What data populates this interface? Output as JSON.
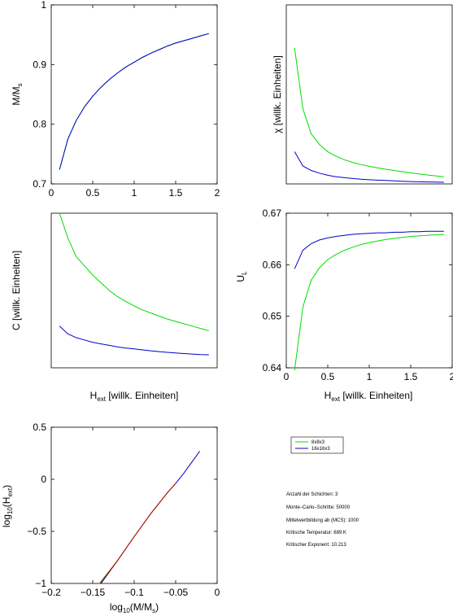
{
  "colors": {
    "green": "#00dd00",
    "blue": "#0000cc",
    "red": "#cc0000",
    "axis": "#000000"
  },
  "legend": {
    "entries": [
      {
        "label": "8x8x3",
        "color": "#00dd00"
      },
      {
        "label": "16x16x3",
        "color": "#0000cc"
      }
    ]
  },
  "info": {
    "lines": [
      "Anzahl der Schichten: 3",
      "Monte–Carlo–Schritte: 50000",
      "Mittelwertbildung ab (MCS): 1000",
      "Kritische Temperatur: 689 K",
      "Kritischer Exponent: 10.213"
    ]
  },
  "chart_data": [
    {
      "id": "magnetization",
      "type": "line",
      "ylabel": "M/M_s",
      "xlabel": "",
      "xlim": [
        0,
        2
      ],
      "ylim": [
        0.7,
        1
      ],
      "xticks": [
        "0",
        "0.5",
        "1",
        "1.5",
        "2"
      ],
      "yticks": [
        "0.7",
        "0.8",
        "0.9",
        "1"
      ],
      "series": [
        {
          "color": "#00dd00",
          "x": [
            0.1,
            0.2,
            0.3,
            0.4,
            0.5,
            0.6,
            0.7,
            0.8,
            0.9,
            1.0,
            1.1,
            1.2,
            1.3,
            1.4,
            1.5,
            1.6,
            1.7,
            1.8,
            1.9
          ],
          "y": [
            0.724,
            0.775,
            0.806,
            0.829,
            0.847,
            0.862,
            0.875,
            0.886,
            0.896,
            0.904,
            0.912,
            0.919,
            0.925,
            0.931,
            0.936,
            0.94,
            0.944,
            0.948,
            0.952
          ]
        },
        {
          "color": "#0000cc",
          "x": [
            0.1,
            0.2,
            0.3,
            0.4,
            0.5,
            0.6,
            0.7,
            0.8,
            0.9,
            1.0,
            1.1,
            1.2,
            1.3,
            1.4,
            1.5,
            1.6,
            1.7,
            1.8,
            1.9
          ],
          "y": [
            0.724,
            0.775,
            0.806,
            0.829,
            0.847,
            0.862,
            0.875,
            0.886,
            0.896,
            0.904,
            0.912,
            0.919,
            0.925,
            0.931,
            0.936,
            0.94,
            0.944,
            0.948,
            0.952
          ]
        }
      ]
    },
    {
      "id": "susceptibility",
      "type": "line",
      "ylabel": "χ [willk. Einheiten]",
      "xlabel": "",
      "xlim": [
        0,
        2
      ],
      "ylim": [
        0,
        1
      ],
      "xticks": [],
      "yticks": [],
      "series": [
        {
          "color": "#00dd00",
          "x": [
            0.1,
            0.2,
            0.3,
            0.4,
            0.5,
            0.6,
            0.7,
            0.8,
            0.9,
            1.0,
            1.1,
            1.2,
            1.3,
            1.4,
            1.5,
            1.6,
            1.7,
            1.8,
            1.9
          ],
          "y": [
            0.76,
            0.42,
            0.28,
            0.22,
            0.18,
            0.155,
            0.135,
            0.12,
            0.108,
            0.098,
            0.09,
            0.082,
            0.075,
            0.068,
            0.062,
            0.056,
            0.05,
            0.045,
            0.04
          ]
        },
        {
          "color": "#0000cc",
          "x": [
            0.1,
            0.2,
            0.3,
            0.4,
            0.5,
            0.6,
            0.7,
            0.8,
            0.9,
            1.0,
            1.1,
            1.2,
            1.3,
            1.4,
            1.5,
            1.6,
            1.7,
            1.8,
            1.9
          ],
          "y": [
            0.18,
            0.1,
            0.075,
            0.06,
            0.048,
            0.04,
            0.035,
            0.03,
            0.026,
            0.023,
            0.021,
            0.019,
            0.017,
            0.015,
            0.013,
            0.012,
            0.011,
            0.01,
            0.009
          ]
        }
      ]
    },
    {
      "id": "specific-heat",
      "type": "line",
      "ylabel": "C [willk. Einheiten]",
      "xlabel": "H_ext [willk. Einheiten]",
      "xlim": [
        0,
        2
      ],
      "ylim": [
        0,
        1
      ],
      "xticks": [],
      "yticks": [],
      "series": [
        {
          "color": "#00dd00",
          "x": [
            0.1,
            0.2,
            0.3,
            0.4,
            0.5,
            0.6,
            0.7,
            0.8,
            0.9,
            1.0,
            1.1,
            1.2,
            1.3,
            1.4,
            1.5,
            1.6,
            1.7,
            1.8,
            1.9
          ],
          "y": [
            1.0,
            0.84,
            0.72,
            0.66,
            0.6,
            0.55,
            0.5,
            0.46,
            0.43,
            0.4,
            0.375,
            0.355,
            0.335,
            0.315,
            0.3,
            0.285,
            0.27,
            0.255,
            0.24
          ]
        },
        {
          "color": "#0000cc",
          "x": [
            0.1,
            0.2,
            0.3,
            0.4,
            0.5,
            0.6,
            0.7,
            0.8,
            0.9,
            1.0,
            1.1,
            1.2,
            1.3,
            1.4,
            1.5,
            1.6,
            1.7,
            1.8,
            1.9
          ],
          "y": [
            0.27,
            0.22,
            0.195,
            0.18,
            0.165,
            0.155,
            0.145,
            0.135,
            0.128,
            0.122,
            0.116,
            0.11,
            0.105,
            0.1,
            0.096,
            0.092,
            0.089,
            0.086,
            0.084
          ]
        }
      ]
    },
    {
      "id": "binder-cumulant",
      "type": "line",
      "ylabel": "U_L",
      "xlabel": "H_ext [willk. Einheiten]",
      "xlim": [
        0,
        2
      ],
      "ylim": [
        0.64,
        0.67
      ],
      "xticks": [
        "0",
        "0.5",
        "1",
        "1.5",
        "2"
      ],
      "yticks": [
        "0.64",
        "0.65",
        "0.66",
        "0.67"
      ],
      "series": [
        {
          "color": "#00dd00",
          "x": [
            0.1,
            0.2,
            0.3,
            0.4,
            0.5,
            0.6,
            0.7,
            0.8,
            0.9,
            1.0,
            1.1,
            1.2,
            1.3,
            1.4,
            1.5,
            1.6,
            1.7,
            1.8,
            1.9
          ],
          "y": [
            0.6395,
            0.6518,
            0.657,
            0.6594,
            0.661,
            0.662,
            0.6628,
            0.6634,
            0.6639,
            0.6643,
            0.6646,
            0.6649,
            0.6651,
            0.6653,
            0.6655,
            0.6656,
            0.6657,
            0.6658,
            0.6659
          ]
        },
        {
          "color": "#0000cc",
          "x": [
            0.1,
            0.2,
            0.3,
            0.4,
            0.5,
            0.6,
            0.7,
            0.8,
            0.9,
            1.0,
            1.1,
            1.2,
            1.3,
            1.4,
            1.5,
            1.6,
            1.7,
            1.8,
            1.9
          ],
          "y": [
            0.6592,
            0.6628,
            0.6641,
            0.6648,
            0.6652,
            0.6655,
            0.6657,
            0.6659,
            0.666,
            0.6661,
            0.6662,
            0.6662,
            0.6663,
            0.6663,
            0.6664,
            0.6664,
            0.6665,
            0.6665,
            0.6665
          ]
        }
      ]
    },
    {
      "id": "scaling",
      "type": "line",
      "ylabel": "log10(H_ext)",
      "xlabel": "log10(M/M_s)",
      "xlim": [
        -0.2,
        0
      ],
      "ylim": [
        -1,
        0.5
      ],
      "xticks": [
        "−0.2",
        "−0.15",
        "−0.1",
        "−0.05",
        "0"
      ],
      "yticks": [
        "−1",
        "−0.5",
        "0",
        "0.5"
      ],
      "series": [
        {
          "color": "#0000cc",
          "x": [
            -0.14,
            -0.12,
            -0.1,
            -0.08,
            -0.06,
            -0.05,
            -0.04,
            -0.03,
            -0.021
          ],
          "y": [
            -1.0,
            -0.78,
            -0.55,
            -0.33,
            -0.13,
            -0.04,
            0.06,
            0.17,
            0.27
          ]
        },
        {
          "color": "#00dd00",
          "x": [
            -0.142,
            -0.12,
            -0.1,
            -0.08,
            -0.06,
            -0.05
          ],
          "y": [
            -1.0,
            -0.78,
            -0.55,
            -0.33,
            -0.13,
            -0.04
          ]
        },
        {
          "color": "#cc0000",
          "x": [
            -0.141,
            -0.12,
            -0.1,
            -0.08,
            -0.06,
            -0.05
          ],
          "y": [
            -1.0,
            -0.78,
            -0.55,
            -0.33,
            -0.13,
            -0.04
          ]
        }
      ]
    }
  ]
}
